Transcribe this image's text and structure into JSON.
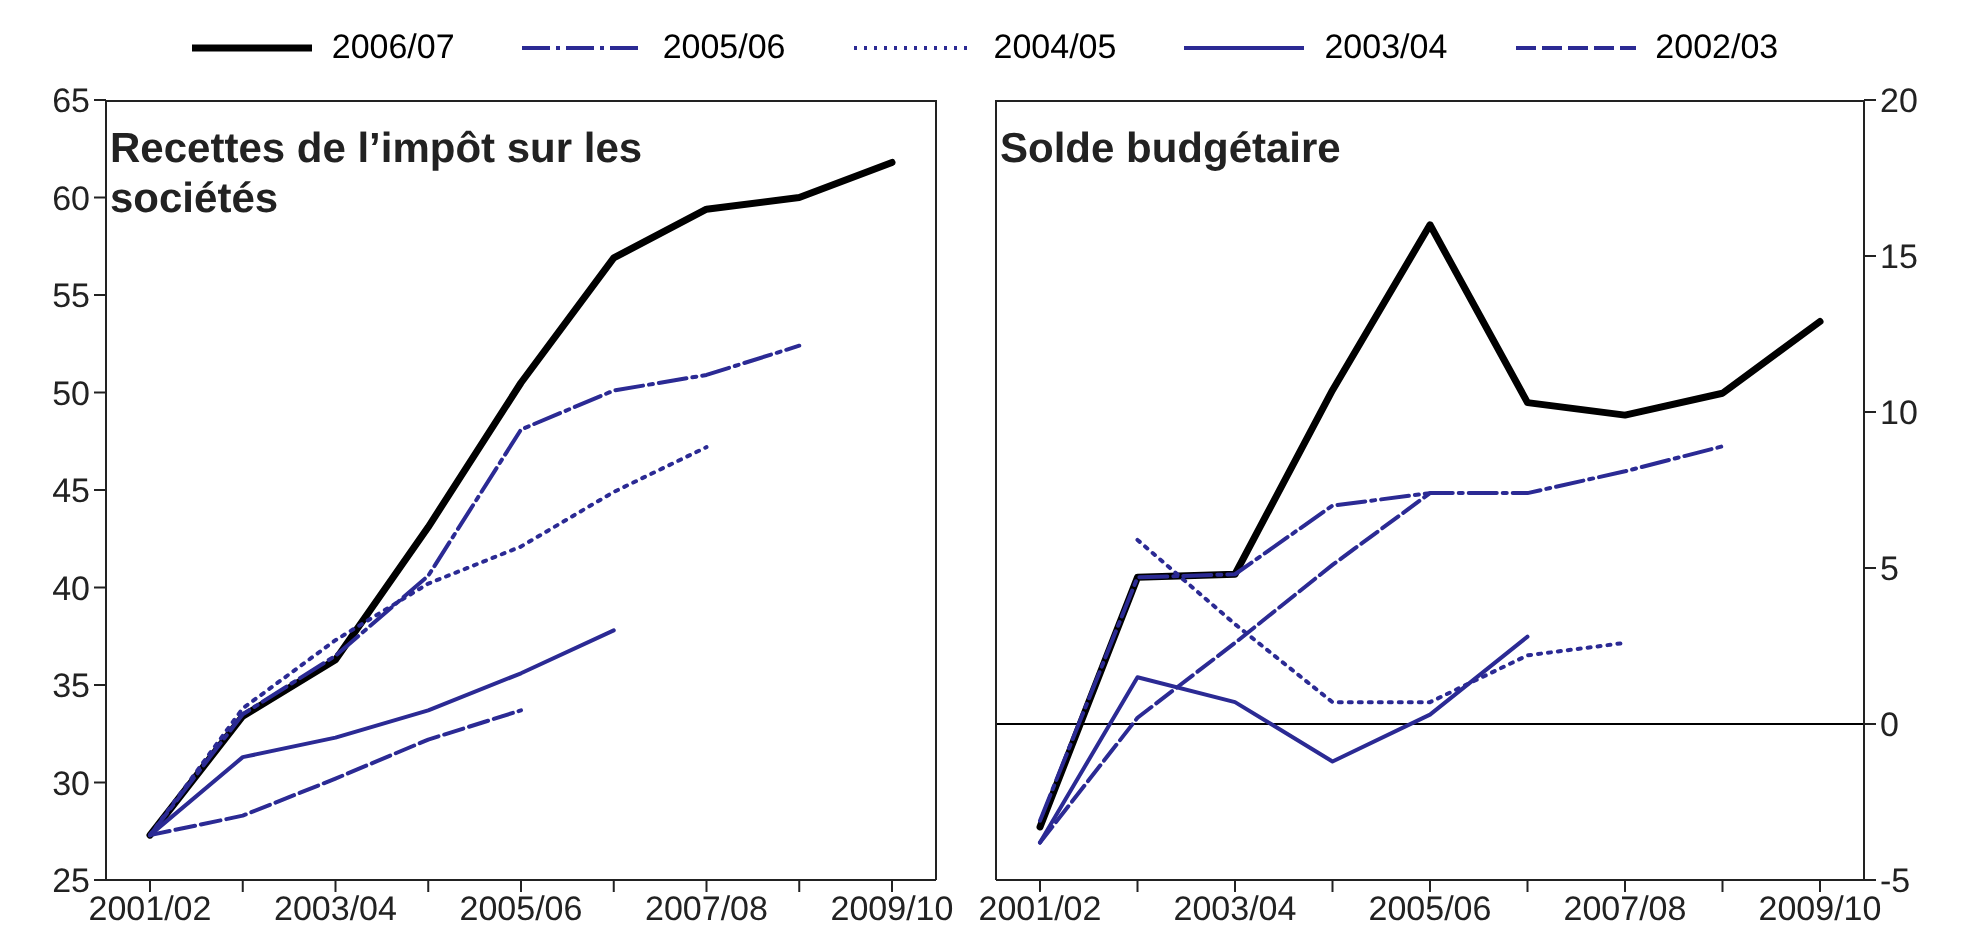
{
  "chart_data": [
    {
      "type": "line",
      "title": "Recettes de l’impôt sur les sociétés",
      "categories": [
        "2001/02",
        null,
        "2003/04",
        null,
        "2005/06",
        null,
        "2007/08",
        null,
        "2009/10"
      ],
      "ylim": [
        25,
        65
      ],
      "yticks": [
        25,
        30,
        35,
        40,
        45,
        50,
        55,
        60,
        65
      ],
      "legend": "top",
      "marker": "none",
      "series": [
        {
          "name": "2006/07",
          "color": "#000000",
          "line_style": "solid",
          "values": [
            27.3,
            33.4,
            36.3,
            43.1,
            50.5,
            56.9,
            59.4,
            60.0,
            61.8
          ]
        },
        {
          "name": "2005/06",
          "color": "#2b2a94",
          "line_style": "dashdot",
          "values": [
            27.3,
            33.5,
            36.5,
            40.6,
            48.1,
            50.1,
            50.9,
            52.4,
            null
          ]
        },
        {
          "name": "2004/05",
          "color": "#2b2a94",
          "line_style": "dotted",
          "values": [
            27.3,
            33.8,
            37.3,
            40.2,
            42.1,
            44.9,
            47.2,
            null,
            null
          ]
        },
        {
          "name": "2003/04",
          "color": "#2b2a94",
          "line_style": "solid",
          "values": [
            27.3,
            31.3,
            32.3,
            33.7,
            35.6,
            37.8,
            null,
            null,
            null
          ]
        },
        {
          "name": "2002/03",
          "color": "#2b2a94",
          "line_style": "dashed",
          "values": [
            27.3,
            28.3,
            30.2,
            32.2,
            33.7,
            null,
            null,
            null,
            null
          ]
        }
      ]
    },
    {
      "type": "line",
      "title": "Solde budgétaire",
      "categories": [
        "2001/02",
        null,
        "2003/04",
        null,
        "2005/06",
        null,
        "2007/08",
        null,
        "2009/10"
      ],
      "y2lim": [
        -5,
        20
      ],
      "y2ticks": [
        -5,
        0,
        5,
        10,
        15,
        20
      ],
      "marker": "none",
      "ref_lines": [
        {
          "axis": "y2",
          "value": 0,
          "color": "#000000"
        }
      ],
      "series": [
        {
          "name": "2006/07",
          "color": "#000000",
          "line_style": "solid",
          "axis": "y2",
          "values": [
            -3.3,
            4.7,
            4.8,
            10.7,
            16.0,
            10.3,
            9.9,
            10.6,
            12.9
          ]
        },
        {
          "name": "2005/06",
          "color": "#2b2a94",
          "line_style": "dashdot",
          "axis": "y2",
          "values": [
            -3.1,
            4.7,
            4.8,
            7.0,
            7.4,
            7.4,
            8.1,
            8.9,
            null
          ]
        },
        {
          "name": "2004/05",
          "color": "#2b2a94",
          "line_style": "dotted",
          "axis": "y2",
          "values": [
            null,
            5.9,
            3.2,
            0.7,
            0.7,
            2.2,
            2.6,
            null,
            null
          ]
        },
        {
          "name": "2003/04",
          "color": "#2b2a94",
          "line_style": "solid",
          "axis": "y2",
          "values": [
            -3.8,
            1.5,
            0.7,
            -1.2,
            0.3,
            2.8,
            null,
            null,
            null
          ]
        },
        {
          "name": "2002/03",
          "color": "#2b2a94",
          "line_style": "dashed",
          "axis": "y2",
          "values": [
            -3.8,
            0.2,
            2.6,
            5.1,
            7.4,
            null,
            null,
            null,
            null
          ]
        }
      ]
    }
  ]
}
